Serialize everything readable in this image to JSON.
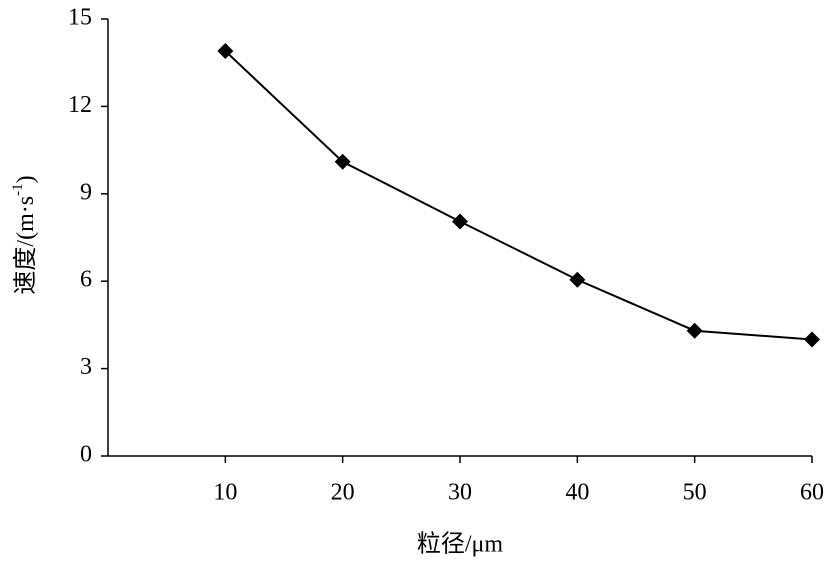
{
  "chart_data": {
    "type": "line",
    "x_label": "粒径/μm",
    "y_label": {
      "text": "速度/(m·s",
      "sup": "-1",
      "end": ")"
    },
    "x": [
      10,
      20,
      30,
      40,
      50,
      60
    ],
    "series": [
      {
        "color": "#000000",
        "values": [
          13.9,
          10.1,
          8.05,
          6.05,
          4.3,
          4.0
        ]
      }
    ],
    "xlim": [
      0,
      60
    ],
    "xticks": [
      10,
      20,
      30,
      40,
      50,
      60
    ],
    "ylim": [
      0,
      15
    ],
    "yticks": [
      0,
      3,
      6,
      9,
      12,
      15
    ],
    "marker": "diamond"
  }
}
